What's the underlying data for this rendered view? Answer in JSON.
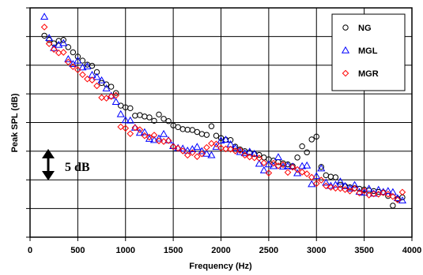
{
  "chart_data": {
    "type": "scatter",
    "xlabel": "Frequency (Hz)",
    "ylabel": "Peak SPL (dB)",
    "xlim": [
      0,
      4000
    ],
    "ylim": [
      0,
      80
    ],
    "x_ticks": [
      "0",
      "500",
      "1000",
      "1500",
      "2000",
      "2500",
      "3000",
      "3500",
      "4000"
    ],
    "grid": true,
    "legend": {
      "placement": "top-right"
    },
    "scale_annotation": "5 dB",
    "series": [
      {
        "name": "NG",
        "marker": "circle",
        "color": "#000000",
        "points": [
          [
            150,
            70.3
          ],
          [
            200,
            68.8
          ],
          [
            250,
            67.6
          ],
          [
            300,
            68.5
          ],
          [
            350,
            68.8
          ],
          [
            400,
            66.3
          ],
          [
            450,
            64.5
          ],
          [
            500,
            63.0
          ],
          [
            550,
            61.6
          ],
          [
            600,
            60.2
          ],
          [
            650,
            59.8
          ],
          [
            700,
            57.6
          ],
          [
            750,
            53.8
          ],
          [
            800,
            53.3
          ],
          [
            850,
            52.5
          ],
          [
            900,
            50.3
          ],
          [
            950,
            45.9
          ],
          [
            1000,
            45.3
          ],
          [
            1050,
            45.0
          ],
          [
            1100,
            42.4
          ],
          [
            1150,
            42.6
          ],
          [
            1200,
            42.1
          ],
          [
            1250,
            41.8
          ],
          [
            1300,
            40.6
          ],
          [
            1350,
            42.8
          ],
          [
            1400,
            41.3
          ],
          [
            1450,
            40.5
          ],
          [
            1500,
            39.0
          ],
          [
            1550,
            38.4
          ],
          [
            1600,
            37.7
          ],
          [
            1650,
            37.5
          ],
          [
            1700,
            37.4
          ],
          [
            1750,
            36.7
          ],
          [
            1800,
            36.0
          ],
          [
            1850,
            35.7
          ],
          [
            1900,
            38.7
          ],
          [
            1950,
            35.4
          ],
          [
            2000,
            34.6
          ],
          [
            2050,
            34.0
          ],
          [
            2100,
            33.9
          ],
          [
            2150,
            31.6
          ],
          [
            2200,
            30.6
          ],
          [
            2250,
            30.0
          ],
          [
            2300,
            29.5
          ],
          [
            2350,
            29.0
          ],
          [
            2400,
            28.7
          ],
          [
            2450,
            27.8
          ],
          [
            2500,
            27.2
          ],
          [
            2550,
            26.7
          ],
          [
            2600,
            26.2
          ],
          [
            2650,
            25.8
          ],
          [
            2700,
            25.4
          ],
          [
            2750,
            24.8
          ],
          [
            2800,
            27.8
          ],
          [
            2850,
            31.7
          ],
          [
            2900,
            29.6
          ],
          [
            2950,
            34.1
          ],
          [
            3000,
            35.1
          ],
          [
            3050,
            24.5
          ],
          [
            3100,
            21.6
          ],
          [
            3150,
            21.1
          ],
          [
            3200,
            20.9
          ],
          [
            3250,
            18.3
          ],
          [
            3300,
            17.8
          ],
          [
            3350,
            17.4
          ],
          [
            3400,
            17.1
          ],
          [
            3450,
            16.9
          ],
          [
            3500,
            16.6
          ],
          [
            3550,
            16.3
          ],
          [
            3600,
            16.1
          ],
          [
            3650,
            15.8
          ],
          [
            3700,
            15.6
          ],
          [
            3750,
            14.4
          ],
          [
            3800,
            11.0
          ],
          [
            3850,
            13.4
          ],
          [
            3900,
            13.9
          ]
        ]
      },
      {
        "name": "MGL",
        "marker": "triangle",
        "color": "#0000ff",
        "points": [
          [
            150,
            76.9
          ],
          [
            200,
            69.5
          ],
          [
            250,
            66.0
          ],
          [
            300,
            67.1
          ],
          [
            350,
            67.7
          ],
          [
            400,
            62.1
          ],
          [
            450,
            60.4
          ],
          [
            500,
            61.6
          ],
          [
            550,
            59.2
          ],
          [
            600,
            59.6
          ],
          [
            650,
            56.6
          ],
          [
            700,
            55.9
          ],
          [
            750,
            54.7
          ],
          [
            800,
            51.9
          ],
          [
            850,
            49.3
          ],
          [
            900,
            47.2
          ],
          [
            950,
            42.9
          ],
          [
            1000,
            40.8
          ],
          [
            1050,
            40.7
          ],
          [
            1100,
            38.2
          ],
          [
            1150,
            36.4
          ],
          [
            1200,
            36.6
          ],
          [
            1250,
            34.3
          ],
          [
            1300,
            33.9
          ],
          [
            1350,
            34.4
          ],
          [
            1400,
            36.0
          ],
          [
            1450,
            33.8
          ],
          [
            1500,
            31.8
          ],
          [
            1550,
            31.1
          ],
          [
            1600,
            30.9
          ],
          [
            1650,
            30.2
          ],
          [
            1700,
            30.7
          ],
          [
            1750,
            31.5
          ],
          [
            1800,
            30.0
          ],
          [
            1850,
            29.1
          ],
          [
            1900,
            28.6
          ],
          [
            1950,
            31.5
          ],
          [
            2000,
            33.7
          ],
          [
            2050,
            34.0
          ],
          [
            2100,
            32.4
          ],
          [
            2150,
            31.1
          ],
          [
            2200,
            29.7
          ],
          [
            2250,
            29.3
          ],
          [
            2300,
            29.8
          ],
          [
            2350,
            29.1
          ],
          [
            2400,
            25.6
          ],
          [
            2450,
            23.3
          ],
          [
            2500,
            25.4
          ],
          [
            2550,
            24.8
          ],
          [
            2600,
            27.9
          ],
          [
            2650,
            24.6
          ],
          [
            2700,
            24.9
          ],
          [
            2750,
            24.6
          ],
          [
            2800,
            22.3
          ],
          [
            2850,
            24.8
          ],
          [
            2900,
            25.0
          ],
          [
            2950,
            18.5
          ],
          [
            3000,
            21.3
          ],
          [
            3050,
            24.0
          ],
          [
            3100,
            19.0
          ],
          [
            3150,
            17.9
          ],
          [
            3200,
            18.3
          ],
          [
            3250,
            19.4
          ],
          [
            3300,
            17.8
          ],
          [
            3350,
            17.0
          ],
          [
            3400,
            18.2
          ],
          [
            3450,
            15.8
          ],
          [
            3500,
            15.5
          ],
          [
            3550,
            16.9
          ],
          [
            3600,
            15.2
          ],
          [
            3650,
            16.5
          ],
          [
            3700,
            15.8
          ],
          [
            3750,
            16.1
          ],
          [
            3800,
            15.7
          ],
          [
            3850,
            13.6
          ],
          [
            3900,
            12.8
          ]
        ]
      },
      {
        "name": "MGR",
        "marker": "diamond",
        "color": "#ff0000",
        "points": [
          [
            150,
            73.3
          ],
          [
            200,
            67.5
          ],
          [
            250,
            65.5
          ],
          [
            300,
            64.3
          ],
          [
            350,
            64.5
          ],
          [
            400,
            61.1
          ],
          [
            450,
            59.5
          ],
          [
            500,
            58.4
          ],
          [
            550,
            56.7
          ],
          [
            600,
            55.2
          ],
          [
            650,
            54.8
          ],
          [
            700,
            52.8
          ],
          [
            750,
            48.7
          ],
          [
            800,
            48.5
          ],
          [
            850,
            49.1
          ],
          [
            900,
            49.5
          ],
          [
            950,
            38.5
          ],
          [
            1000,
            38.0
          ],
          [
            1050,
            36.1
          ],
          [
            1100,
            38.2
          ],
          [
            1150,
            37.5
          ],
          [
            1200,
            35.4
          ],
          [
            1250,
            34.9
          ],
          [
            1300,
            35.6
          ],
          [
            1350,
            33.6
          ],
          [
            1400,
            33.4
          ],
          [
            1450,
            33.7
          ],
          [
            1500,
            31.6
          ],
          [
            1550,
            31.0
          ],
          [
            1600,
            30.1
          ],
          [
            1650,
            28.6
          ],
          [
            1700,
            29.5
          ],
          [
            1750,
            28.1
          ],
          [
            1800,
            29.1
          ],
          [
            1850,
            31.3
          ],
          [
            1900,
            32.7
          ],
          [
            1950,
            32.5
          ],
          [
            2000,
            31.1
          ],
          [
            2050,
            30.8
          ],
          [
            2100,
            30.7
          ],
          [
            2150,
            30.1
          ],
          [
            2200,
            30.3
          ],
          [
            2250,
            28.6
          ],
          [
            2300,
            28.0
          ],
          [
            2350,
            27.7
          ],
          [
            2400,
            27.6
          ],
          [
            2450,
            25.9
          ],
          [
            2500,
            22.4
          ],
          [
            2550,
            25.8
          ],
          [
            2600,
            24.9
          ],
          [
            2650,
            25.3
          ],
          [
            2700,
            22.6
          ],
          [
            2750,
            24.4
          ],
          [
            2800,
            23.6
          ],
          [
            2850,
            22.7
          ],
          [
            2900,
            22.1
          ],
          [
            2950,
            20.9
          ],
          [
            3000,
            18.7
          ],
          [
            3050,
            19.9
          ],
          [
            3100,
            17.9
          ],
          [
            3150,
            17.4
          ],
          [
            3200,
            17.1
          ],
          [
            3250,
            17.0
          ],
          [
            3300,
            16.6
          ],
          [
            3350,
            16.1
          ],
          [
            3400,
            17.0
          ],
          [
            3450,
            15.4
          ],
          [
            3500,
            16.2
          ],
          [
            3550,
            14.7
          ],
          [
            3600,
            15.1
          ],
          [
            3650,
            15.0
          ],
          [
            3700,
            15.5
          ],
          [
            3750,
            15.0
          ],
          [
            3800,
            14.2
          ],
          [
            3850,
            13.0
          ],
          [
            3900,
            15.7
          ]
        ]
      }
    ]
  }
}
